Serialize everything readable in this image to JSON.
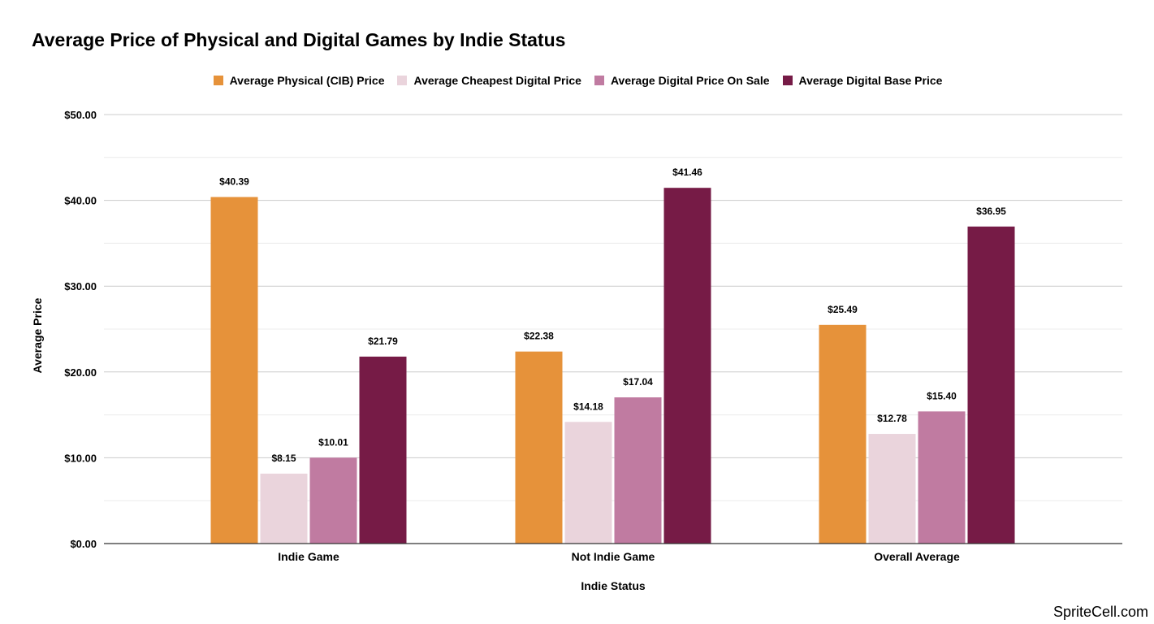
{
  "chart_data": {
    "type": "bar",
    "title": "Average Price of Physical and Digital Games by Indie Status",
    "xlabel": "Indie Status",
    "ylabel": "Average Price",
    "categories": [
      "Indie Game",
      "Not Indie Game",
      "Overall Average"
    ],
    "series": [
      {
        "name": "Average Physical (CIB) Price",
        "color": "#e6923a",
        "values": [
          40.39,
          22.38,
          25.49
        ],
        "labels": [
          "$40.39",
          "$22.38",
          "$25.49"
        ]
      },
      {
        "name": "Average Cheapest Digital Price",
        "color": "#ead4dc",
        "values": [
          8.15,
          14.18,
          12.78
        ],
        "labels": [
          "$8.15",
          "$14.18",
          "$12.78"
        ]
      },
      {
        "name": "Average Digital Price On Sale",
        "color": "#c07ba1",
        "values": [
          10.01,
          17.04,
          15.4
        ],
        "labels": [
          "$10.01",
          "$17.04",
          "$15.40"
        ]
      },
      {
        "name": "Average Digital Base Price",
        "color": "#761b46",
        "values": [
          21.79,
          41.46,
          36.95
        ],
        "labels": [
          "$21.79",
          "$41.46",
          "$36.95"
        ]
      }
    ],
    "ylim": [
      0,
      50
    ],
    "yticks": [
      0,
      10,
      20,
      30,
      40,
      50
    ],
    "ytick_labels": [
      "$0.00",
      "$10.00",
      "$20.00",
      "$30.00",
      "$40.00",
      "$50.00"
    ],
    "grid": true,
    "legend_position": "top-center"
  },
  "watermark": "SpriteCell.com"
}
